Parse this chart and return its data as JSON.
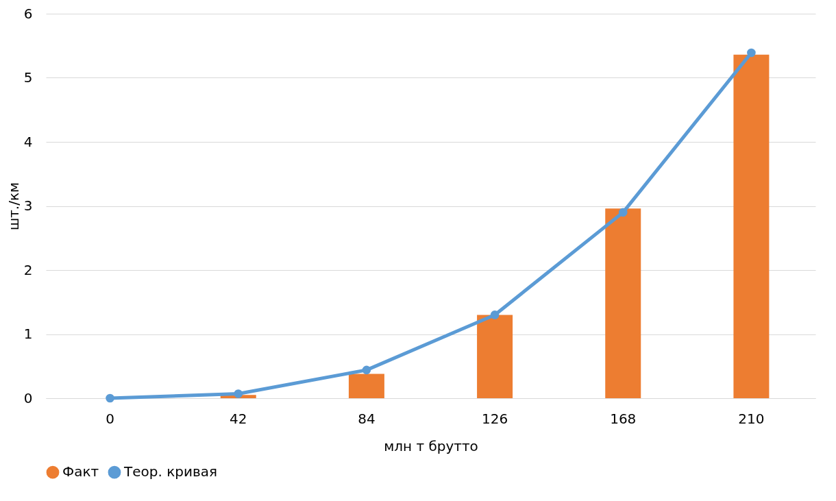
{
  "chart_data": {
    "type": "bar",
    "xlabel": "млн т брутто",
    "ylabel": "шт./км",
    "categories": [
      "0",
      "42",
      "84",
      "126",
      "168",
      "210"
    ],
    "series": [
      {
        "name": "Факт",
        "color": "#ed7d31",
        "values": [
          0,
          0.05,
          0.38,
          1.3,
          2.96,
          5.36
        ]
      },
      {
        "name": "Теор. кривая",
        "type": "line",
        "color": "#5b9bd5",
        "values": [
          0,
          0.07,
          0.44,
          1.3,
          2.9,
          5.39
        ],
        "marker": "circle"
      }
    ],
    "ylim": [
      0,
      6
    ],
    "yticks": [
      0,
      1,
      2,
      3,
      4,
      5,
      6
    ],
    "grid": "y",
    "legend": "bottom"
  }
}
